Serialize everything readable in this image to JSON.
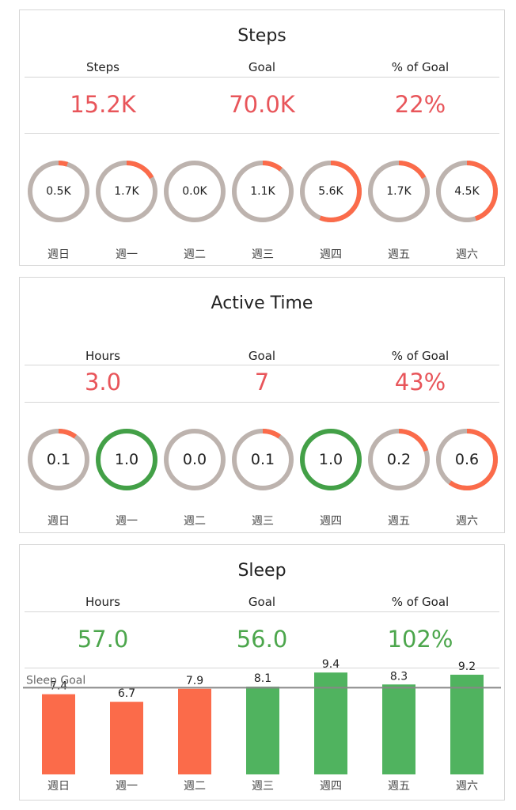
{
  "colors": {
    "red": "#e8555a",
    "green": "#4ca64c",
    "orange": "#fb6b4a",
    "bar_green": "#50b35f",
    "ring_track": "#bdb3ae",
    "ring_green": "#43a047",
    "goal_line": "#888888"
  },
  "days": [
    "週日",
    "週一",
    "週二",
    "週三",
    "週四",
    "週五",
    "週六"
  ],
  "steps": {
    "title": "Steps",
    "kpis": [
      {
        "label": "Steps",
        "value": "15.2K"
      },
      {
        "label": "Goal",
        "value": "70.0K"
      },
      {
        "label": "% of Goal",
        "value": "22%"
      }
    ],
    "chart_data": {
      "type": "donut",
      "categories": [
        "週日",
        "週一",
        "週二",
        "週三",
        "週四",
        "週五",
        "週六"
      ],
      "labels": [
        "0.5K",
        "1.7K",
        "0.0K",
        "1.1K",
        "5.6K",
        "1.7K",
        "4.5K"
      ],
      "values": [
        0.5,
        1.7,
        0.0,
        1.1,
        5.6,
        1.7,
        4.5
      ],
      "fraction_of_goal": [
        0.05,
        0.17,
        0.0,
        0.11,
        0.56,
        0.17,
        0.45
      ]
    }
  },
  "active": {
    "title": "Active Time",
    "kpis": [
      {
        "label": "Hours",
        "value": "3.0"
      },
      {
        "label": "Goal",
        "value": "7"
      },
      {
        "label": "% of Goal",
        "value": "43%"
      }
    ],
    "chart_data": {
      "type": "donut",
      "categories": [
        "週日",
        "週一",
        "週二",
        "週三",
        "週四",
        "週五",
        "週六"
      ],
      "labels": [
        "0.1",
        "1.0",
        "0.0",
        "0.1",
        "1.0",
        "0.2",
        "0.6"
      ],
      "values": [
        0.1,
        1.0,
        0.0,
        0.1,
        1.0,
        0.2,
        0.6
      ],
      "fraction_of_goal": [
        0.1,
        1.0,
        0.0,
        0.1,
        1.0,
        0.2,
        0.6
      ]
    }
  },
  "sleep": {
    "title": "Sleep",
    "kpis": [
      {
        "label": "Hours",
        "value": "57.0"
      },
      {
        "label": "Goal",
        "value": "56.0"
      },
      {
        "label": "% of Goal",
        "value": "102%"
      }
    ],
    "chart_data": {
      "type": "bar",
      "categories": [
        "週日",
        "週一",
        "週二",
        "週三",
        "週四",
        "週五",
        "週六"
      ],
      "labels": [
        "7.4",
        "6.7",
        "7.9",
        "8.1",
        "9.4",
        "8.3",
        "9.2"
      ],
      "values": [
        7.4,
        6.7,
        7.9,
        8.1,
        9.4,
        8.3,
        9.2
      ],
      "goal": 8.0,
      "goal_label": "Sleep Goal",
      "ylim": [
        0,
        10
      ]
    }
  }
}
